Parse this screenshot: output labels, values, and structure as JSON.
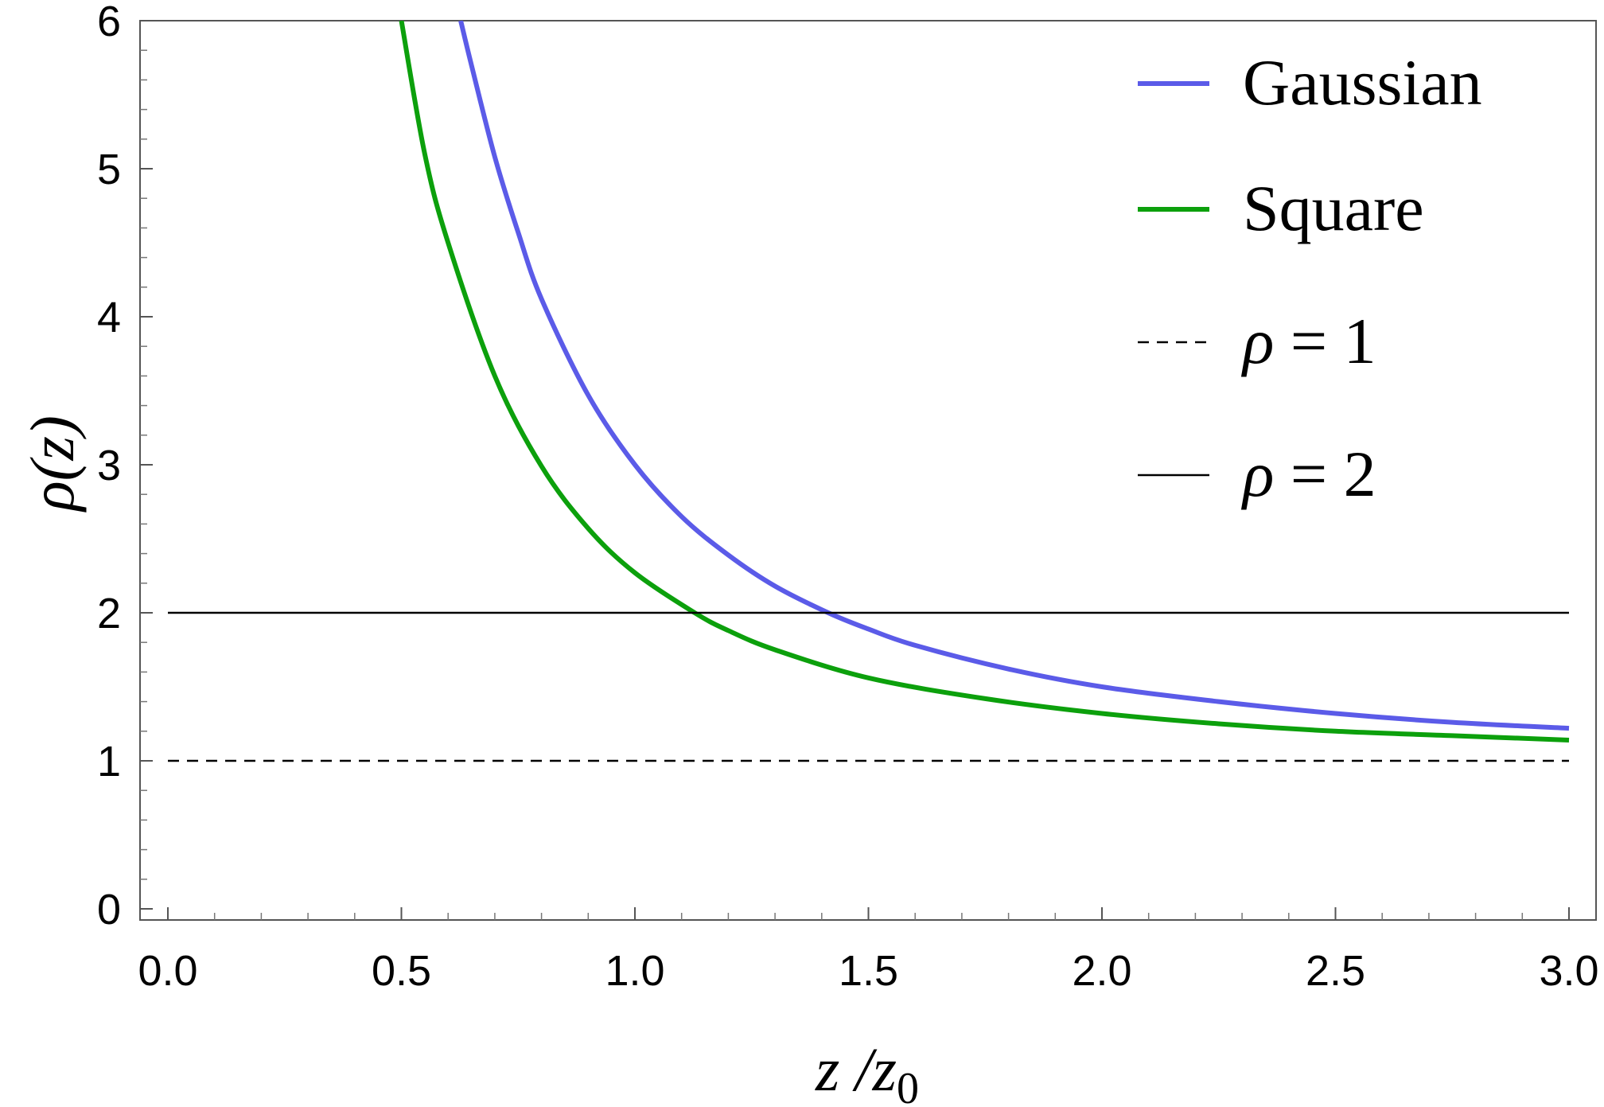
{
  "chart_data": {
    "type": "line",
    "xlabel": "z /z0",
    "ylabel": "ρ(z)",
    "xlim": [
      0,
      3
    ],
    "ylim": [
      0,
      6
    ],
    "x_ticks": [
      "0.0",
      "0.5",
      "1.0",
      "1.5",
      "2.0",
      "2.5",
      "3.0"
    ],
    "y_ticks": [
      "0",
      "1",
      "2",
      "3",
      "4",
      "5",
      "6"
    ],
    "grid": false,
    "legend_position": "top-right",
    "series": [
      {
        "name": "Gaussian",
        "color": "#5b5be8",
        "style": "solid-thick",
        "x": [
          0.627,
          0.65,
          0.7,
          0.75,
          0.8,
          0.9,
          1.0,
          1.1,
          1.2,
          1.3,
          1.414,
          1.5,
          1.6,
          1.8,
          2.0,
          2.25,
          2.5,
          2.75,
          3.0
        ],
        "y": [
          6.0,
          5.7,
          5.08,
          4.57,
          4.12,
          3.47,
          3.0,
          2.65,
          2.39,
          2.18,
          2.0,
          1.89,
          1.78,
          1.62,
          1.5,
          1.4,
          1.32,
          1.26,
          1.22
        ]
      },
      {
        "name": "Square",
        "color": "#0ca00c",
        "style": "solid-thick",
        "x": [
          0.5,
          0.55,
          0.6,
          0.7,
          0.8,
          0.9,
          1.0,
          1.128,
          1.2,
          1.3,
          1.5,
          1.75,
          2.0,
          2.25,
          2.5,
          2.75,
          3.0
        ],
        "y": [
          6.0,
          5.1,
          4.5,
          3.6,
          2.99,
          2.57,
          2.27,
          2.0,
          1.88,
          1.75,
          1.56,
          1.42,
          1.32,
          1.25,
          1.2,
          1.17,
          1.14
        ]
      },
      {
        "name": "ρ = 1",
        "color": "#000000",
        "style": "dashed",
        "x": [
          0,
          3
        ],
        "y": [
          1,
          1
        ]
      },
      {
        "name": "ρ = 2",
        "color": "#000000",
        "style": "solid-thin",
        "x": [
          0,
          3
        ],
        "y": [
          2,
          2
        ]
      }
    ]
  }
}
